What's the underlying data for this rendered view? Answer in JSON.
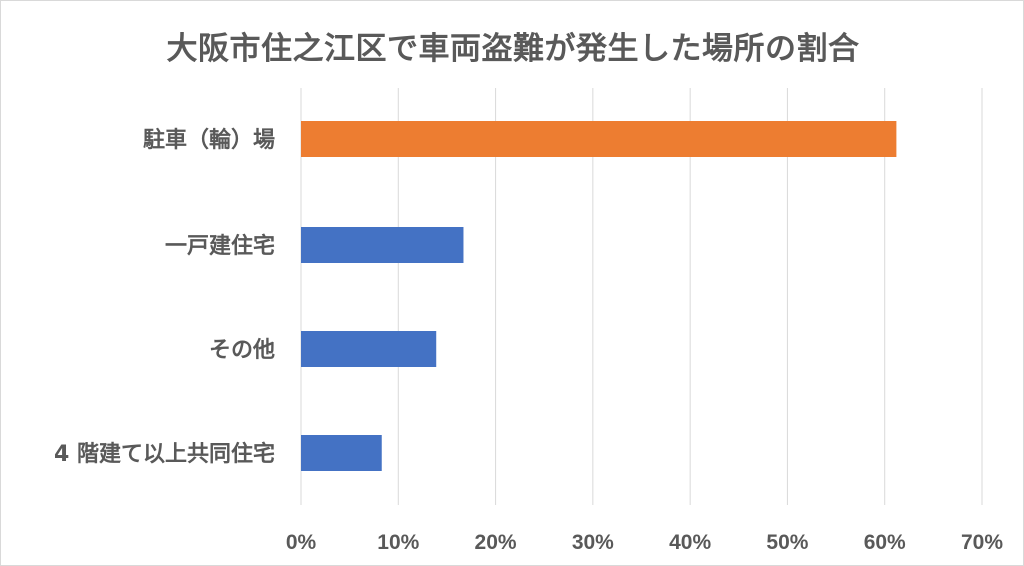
{
  "chart_data": {
    "type": "bar",
    "orientation": "horizontal",
    "title": "大阪市住之江区で車両盗難が発生した場所の割合",
    "categories": [
      "駐車（輪）場",
      "一戸建住宅",
      "その他",
      "4 階建て以上共同住宅"
    ],
    "values": [
      61.2,
      16.7,
      13.9,
      8.3
    ],
    "colors": [
      "#ED7D31",
      "#4472C4",
      "#4472C4",
      "#4472C4"
    ],
    "xlim": [
      0,
      70
    ],
    "xticks": [
      0,
      10,
      20,
      30,
      40,
      50,
      60,
      70
    ],
    "tick_labels": [
      "0%",
      "10%",
      "20%",
      "30%",
      "40%",
      "50%",
      "60%",
      "70%"
    ],
    "grid": true,
    "xlabel": "",
    "ylabel": ""
  }
}
